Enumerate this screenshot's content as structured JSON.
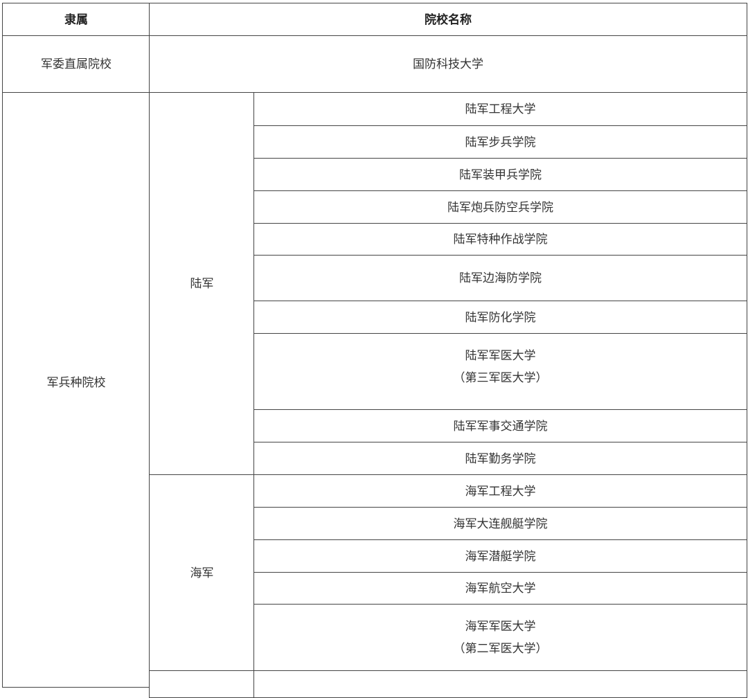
{
  "header": {
    "affiliation": "隶属",
    "school_name": "院校名称"
  },
  "direct": {
    "affiliation": "军委直属院校",
    "school": "国防科技大学"
  },
  "branches": {
    "affiliation": "军兵种院校",
    "army": {
      "name": "陆军",
      "schools": [
        "陆军工程大学",
        "陆军步兵学院",
        "陆军装甲兵学院",
        "陆军炮兵防空兵学院",
        "陆军特种作战学院",
        "陆军边海防学院",
        "陆军防化学院",
        "陆军军医大学",
        "陆军军事交通学院",
        "陆军勤务学院"
      ],
      "medical_note": "（第三军医大学）"
    },
    "navy": {
      "name": "海军",
      "schools": [
        "海军工程大学",
        "海军大连舰艇学院",
        "海军潜艇学院",
        "海军航空大学",
        "海军军医大学"
      ],
      "medical_note": "（第二军医大学）"
    }
  }
}
